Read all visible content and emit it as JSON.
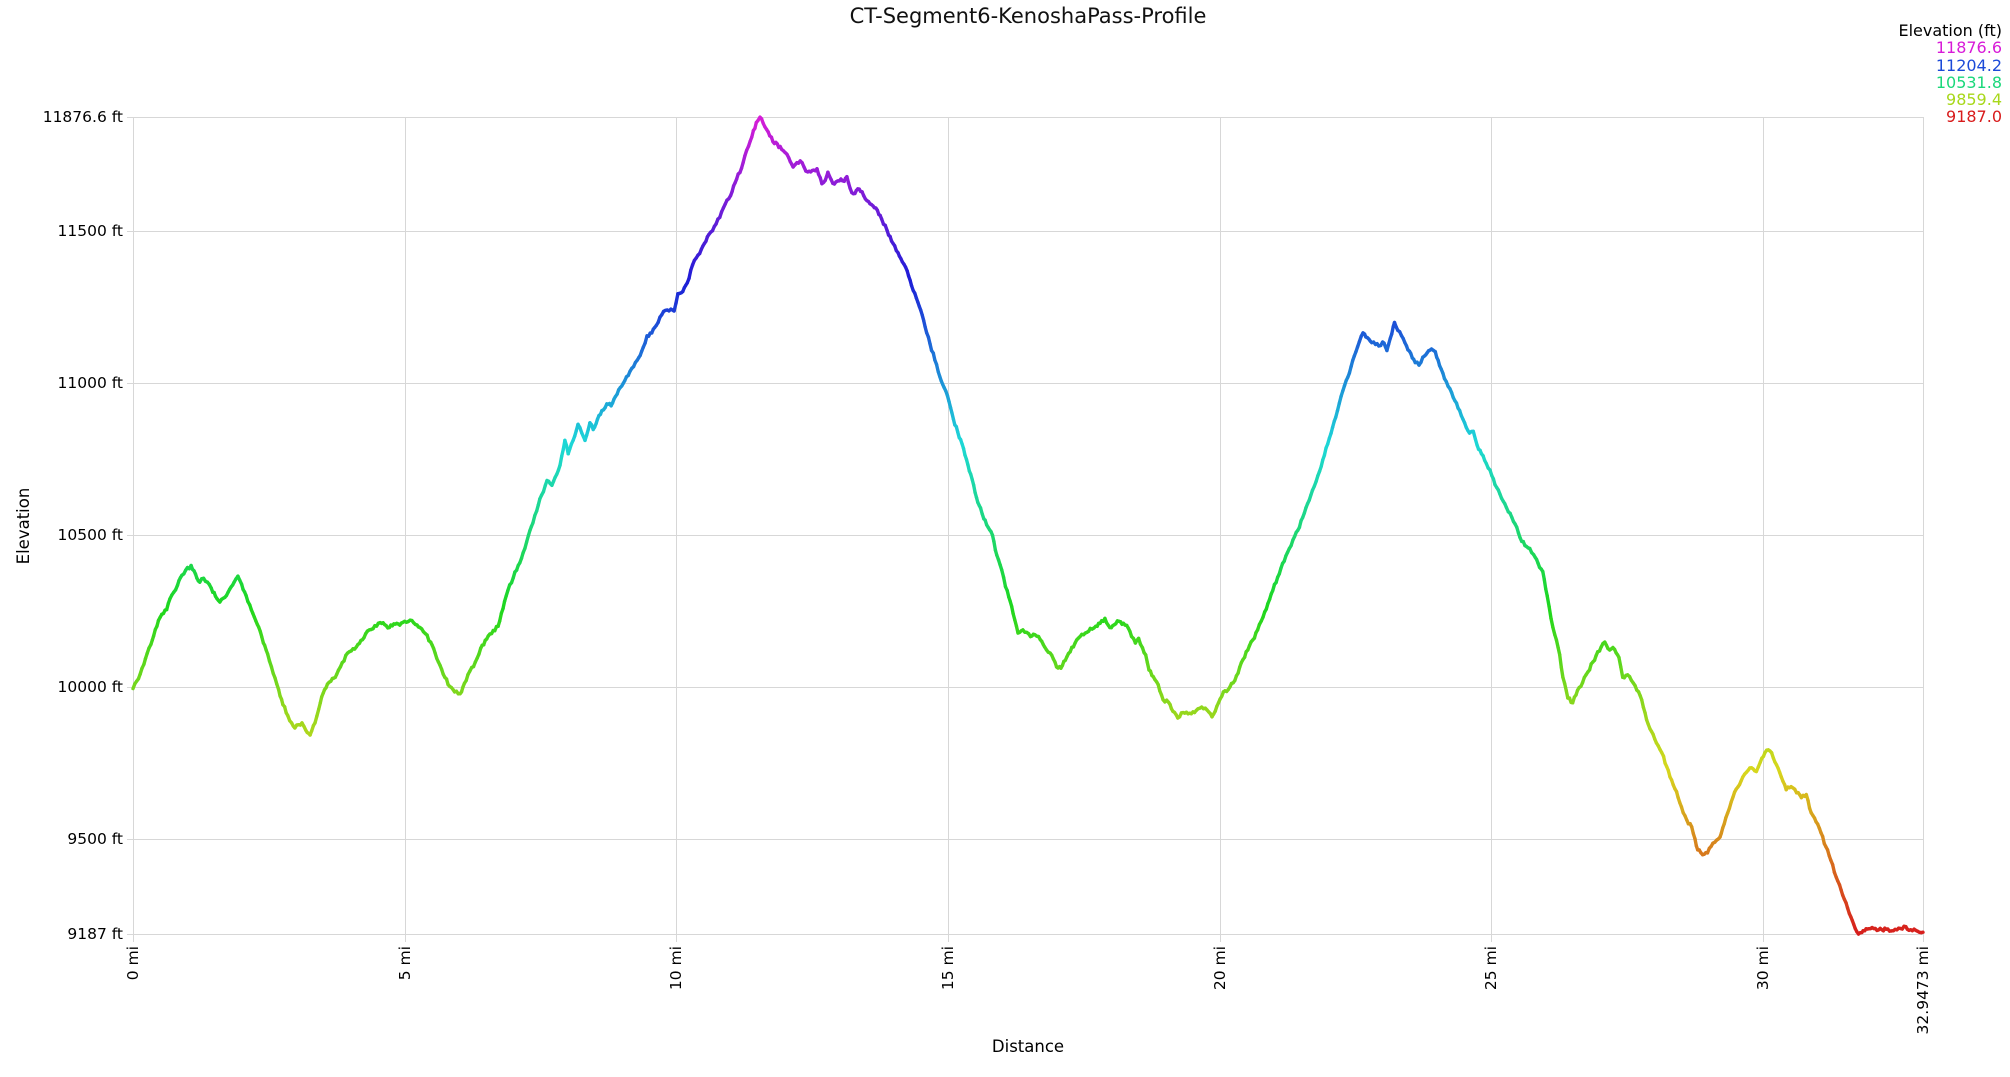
{
  "title": "CT-Segment6-KenoshaPass-Profile",
  "legend": {
    "title": "Elevation (ft)",
    "position": "top-right",
    "entries": [
      {
        "label": "11876.6",
        "color": "#d81bd8"
      },
      {
        "label": "11204.2",
        "color": "#1b4ad8"
      },
      {
        "label": "10531.8",
        "color": "#1bd87b"
      },
      {
        "label": "9859.4",
        "color": "#a8d81b"
      },
      {
        "label": "9187.0",
        "color": "#d81b1b"
      }
    ]
  },
  "colors": {
    "grid": "#d7d7d7",
    "text": "#000000",
    "background": "#ffffff"
  },
  "chart_data": {
    "type": "line",
    "title": "CT-Segment6-KenoshaPass-Profile",
    "xlabel": "Distance",
    "ylabel": "Elevation",
    "x_unit": "mi",
    "y_unit": "ft",
    "xlim": [
      0,
      32.9473
    ],
    "ylim": [
      9187.0,
      11876.6
    ],
    "grid": true,
    "color_mapping": "line colored by elevation: red=9187 ft through orange, yellow-green, green, cyan, blue to magenta=11876.6 ft",
    "x_ticks": [
      {
        "value": 0,
        "label": "0 mi"
      },
      {
        "value": 5,
        "label": "5 mi"
      },
      {
        "value": 10,
        "label": "10 mi"
      },
      {
        "value": 15,
        "label": "15 mi"
      },
      {
        "value": 20,
        "label": "20 mi"
      },
      {
        "value": 25,
        "label": "25 mi"
      },
      {
        "value": 30,
        "label": "30 mi"
      },
      {
        "value": 32.9473,
        "label": "32.9473 mi"
      }
    ],
    "y_ticks": [
      {
        "value": 9187,
        "label": "9187 ft"
      },
      {
        "value": 9500,
        "label": "9500 ft"
      },
      {
        "value": 10000,
        "label": "10000 ft"
      },
      {
        "value": 10500,
        "label": "10500 ft"
      },
      {
        "value": 11000,
        "label": "11000 ft"
      },
      {
        "value": 11500,
        "label": "11500 ft"
      },
      {
        "value": 11876.6,
        "label": "11876.6 ft"
      }
    ],
    "profile": [
      [
        0,
        9995
      ],
      [
        0.07,
        10020
      ],
      [
        0.13,
        10042
      ],
      [
        0.2,
        10075
      ],
      [
        0.26,
        10110
      ],
      [
        0.33,
        10140
      ],
      [
        0.38,
        10168
      ],
      [
        0.44,
        10200
      ],
      [
        0.5,
        10230
      ],
      [
        0.56,
        10242
      ],
      [
        0.62,
        10255
      ],
      [
        0.68,
        10290
      ],
      [
        0.75,
        10312
      ],
      [
        0.82,
        10335
      ],
      [
        0.9,
        10368
      ],
      [
        0.97,
        10385
      ],
      [
        1.07,
        10400
      ],
      [
        1.15,
        10372
      ],
      [
        1.23,
        10345
      ],
      [
        1.3,
        10358
      ],
      [
        1.37,
        10345
      ],
      [
        1.44,
        10326
      ],
      [
        1.52,
        10298
      ],
      [
        1.6,
        10280
      ],
      [
        1.69,
        10295
      ],
      [
        1.78,
        10322
      ],
      [
        1.86,
        10345
      ],
      [
        1.93,
        10365
      ],
      [
        2.0,
        10338
      ],
      [
        2.08,
        10302
      ],
      [
        2.15,
        10270
      ],
      [
        2.26,
        10218
      ],
      [
        2.37,
        10165
      ],
      [
        2.48,
        10108
      ],
      [
        2.58,
        10045
      ],
      [
        2.68,
        9992
      ],
      [
        2.76,
        9942
      ],
      [
        2.85,
        9906
      ],
      [
        2.92,
        9882
      ],
      [
        2.98,
        9865
      ],
      [
        3.05,
        9876
      ],
      [
        3.11,
        9882
      ],
      [
        3.18,
        9858
      ],
      [
        3.26,
        9842
      ],
      [
        3.35,
        9882
      ],
      [
        3.42,
        9928
      ],
      [
        3.5,
        9980
      ],
      [
        3.58,
        10010
      ],
      [
        3.67,
        10028
      ],
      [
        3.75,
        10042
      ],
      [
        3.85,
        10080
      ],
      [
        3.95,
        10112
      ],
      [
        4.05,
        10126
      ],
      [
        4.14,
        10140
      ],
      [
        4.25,
        10162
      ],
      [
        4.35,
        10188
      ],
      [
        4.45,
        10202
      ],
      [
        4.55,
        10212
      ],
      [
        4.63,
        10206
      ],
      [
        4.72,
        10196
      ],
      [
        4.8,
        10208
      ],
      [
        4.91,
        10204
      ],
      [
        5.0,
        10216
      ],
      [
        5.1,
        10220
      ],
      [
        5.2,
        10206
      ],
      [
        5.28,
        10196
      ],
      [
        5.38,
        10176
      ],
      [
        5.48,
        10148
      ],
      [
        5.56,
        10112
      ],
      [
        5.65,
        10072
      ],
      [
        5.74,
        10032
      ],
      [
        5.83,
        10002
      ],
      [
        5.92,
        9984
      ],
      [
        6.02,
        9978
      ],
      [
        6.1,
        10012
      ],
      [
        6.2,
        10052
      ],
      [
        6.3,
        10082
      ],
      [
        6.4,
        10128
      ],
      [
        6.51,
        10158
      ],
      [
        6.6,
        10176
      ],
      [
        6.72,
        10200
      ],
      [
        6.81,
        10258
      ],
      [
        6.9,
        10318
      ],
      [
        7.0,
        10360
      ],
      [
        7.09,
        10400
      ],
      [
        7.18,
        10442
      ],
      [
        7.28,
        10500
      ],
      [
        7.36,
        10540
      ],
      [
        7.43,
        10580
      ],
      [
        7.52,
        10632
      ],
      [
        7.62,
        10680
      ],
      [
        7.71,
        10664
      ],
      [
        7.77,
        10690
      ],
      [
        7.86,
        10730
      ],
      [
        7.95,
        10812
      ],
      [
        8.01,
        10768
      ],
      [
        8.1,
        10812
      ],
      [
        8.19,
        10865
      ],
      [
        8.26,
        10836
      ],
      [
        8.32,
        10812
      ],
      [
        8.41,
        10870
      ],
      [
        8.47,
        10848
      ],
      [
        8.55,
        10882
      ],
      [
        8.63,
        10910
      ],
      [
        8.72,
        10932
      ],
      [
        8.8,
        10926
      ],
      [
        8.88,
        10956
      ],
      [
        8.97,
        10986
      ],
      [
        9.05,
        11008
      ],
      [
        9.15,
        11040
      ],
      [
        9.28,
        11076
      ],
      [
        9.39,
        11118
      ],
      [
        9.46,
        11156
      ],
      [
        9.55,
        11166
      ],
      [
        9.63,
        11190
      ],
      [
        9.7,
        11218
      ],
      [
        9.8,
        11240
      ],
      [
        9.9,
        11244
      ],
      [
        9.96,
        11238
      ],
      [
        10.03,
        11295
      ],
      [
        10.12,
        11302
      ],
      [
        10.2,
        11330
      ],
      [
        10.3,
        11390
      ],
      [
        10.4,
        11422
      ],
      [
        10.49,
        11452
      ],
      [
        10.6,
        11490
      ],
      [
        10.7,
        11516
      ],
      [
        10.8,
        11546
      ],
      [
        10.9,
        11590
      ],
      [
        11.0,
        11618
      ],
      [
        11.11,
        11672
      ],
      [
        11.23,
        11726
      ],
      [
        11.33,
        11780
      ],
      [
        11.42,
        11832
      ],
      [
        11.5,
        11864
      ],
      [
        11.54,
        11876
      ],
      [
        11.6,
        11856
      ],
      [
        11.69,
        11828
      ],
      [
        11.78,
        11795
      ],
      [
        11.86,
        11788
      ],
      [
        11.94,
        11770
      ],
      [
        12.0,
        11760
      ],
      [
        12.07,
        11742
      ],
      [
        12.15,
        11712
      ],
      [
        12.22,
        11726
      ],
      [
        12.28,
        11732
      ],
      [
        12.35,
        11712
      ],
      [
        12.42,
        11696
      ],
      [
        12.5,
        11700
      ],
      [
        12.59,
        11706
      ],
      [
        12.68,
        11657
      ],
      [
        12.74,
        11668
      ],
      [
        12.79,
        11695
      ],
      [
        12.85,
        11671
      ],
      [
        12.91,
        11656
      ],
      [
        12.97,
        11666
      ],
      [
        13.03,
        11672
      ],
      [
        13.09,
        11665
      ],
      [
        13.14,
        11680
      ],
      [
        13.2,
        11642
      ],
      [
        13.26,
        11624
      ],
      [
        13.34,
        11640
      ],
      [
        13.42,
        11630
      ],
      [
        13.51,
        11601
      ],
      [
        13.62,
        11584
      ],
      [
        13.7,
        11570
      ],
      [
        13.78,
        11540
      ],
      [
        13.88,
        11503
      ],
      [
        13.99,
        11460
      ],
      [
        14.08,
        11430
      ],
      [
        14.16,
        11400
      ],
      [
        14.25,
        11370
      ],
      [
        14.33,
        11322
      ],
      [
        14.42,
        11280
      ],
      [
        14.5,
        11240
      ],
      [
        14.58,
        11186
      ],
      [
        14.67,
        11130
      ],
      [
        14.76,
        11076
      ],
      [
        14.85,
        11022
      ],
      [
        14.93,
        10986
      ],
      [
        15.02,
        10940
      ],
      [
        15.1,
        10882
      ],
      [
        15.18,
        10840
      ],
      [
        15.26,
        10800
      ],
      [
        15.34,
        10750
      ],
      [
        15.42,
        10700
      ],
      [
        15.5,
        10640
      ],
      [
        15.55,
        10608
      ],
      [
        15.6,
        10590
      ],
      [
        15.66,
        10554
      ],
      [
        15.74,
        10526
      ],
      [
        15.82,
        10500
      ],
      [
        15.9,
        10434
      ],
      [
        15.99,
        10386
      ],
      [
        16.06,
        10330
      ],
      [
        16.12,
        10296
      ],
      [
        16.2,
        10242
      ],
      [
        16.29,
        10178
      ],
      [
        16.38,
        10188
      ],
      [
        16.45,
        10180
      ],
      [
        16.52,
        10166
      ],
      [
        16.6,
        10172
      ],
      [
        16.7,
        10156
      ],
      [
        16.78,
        10132
      ],
      [
        16.88,
        10112
      ],
      [
        17.0,
        10066
      ],
      [
        17.08,
        10062
      ],
      [
        17.16,
        10088
      ],
      [
        17.25,
        10116
      ],
      [
        17.34,
        10145
      ],
      [
        17.43,
        10166
      ],
      [
        17.53,
        10178
      ],
      [
        17.62,
        10193
      ],
      [
        17.72,
        10200
      ],
      [
        17.8,
        10210
      ],
      [
        17.89,
        10226
      ],
      [
        17.98,
        10196
      ],
      [
        18.06,
        10205
      ],
      [
        18.15,
        10216
      ],
      [
        18.23,
        10210
      ],
      [
        18.29,
        10203
      ],
      [
        18.38,
        10166
      ],
      [
        18.45,
        10145
      ],
      [
        18.51,
        10160
      ],
      [
        18.58,
        10130
      ],
      [
        18.64,
        10106
      ],
      [
        18.7,
        10056
      ],
      [
        18.78,
        10034
      ],
      [
        18.87,
        10008
      ],
      [
        18.96,
        9958
      ],
      [
        19.06,
        9950
      ],
      [
        19.14,
        9920
      ],
      [
        19.23,
        9898
      ],
      [
        19.33,
        9916
      ],
      [
        19.42,
        9912
      ],
      [
        19.51,
        9918
      ],
      [
        19.6,
        9928
      ],
      [
        19.67,
        9934
      ],
      [
        19.77,
        9924
      ],
      [
        19.86,
        9902
      ],
      [
        19.92,
        9920
      ],
      [
        19.98,
        9948
      ],
      [
        20.07,
        9984
      ],
      [
        20.16,
        9992
      ],
      [
        20.25,
        10014
      ],
      [
        20.34,
        10046
      ],
      [
        20.43,
        10090
      ],
      [
        20.52,
        10122
      ],
      [
        20.61,
        10155
      ],
      [
        20.7,
        10188
      ],
      [
        20.8,
        10230
      ],
      [
        20.89,
        10275
      ],
      [
        20.98,
        10318
      ],
      [
        21.07,
        10362
      ],
      [
        21.16,
        10407
      ],
      [
        21.25,
        10443
      ],
      [
        21.35,
        10484
      ],
      [
        21.44,
        10516
      ],
      [
        21.53,
        10558
      ],
      [
        21.62,
        10604
      ],
      [
        21.71,
        10648
      ],
      [
        21.81,
        10696
      ],
      [
        21.9,
        10748
      ],
      [
        21.99,
        10800
      ],
      [
        22.08,
        10855
      ],
      [
        22.17,
        10910
      ],
      [
        22.27,
        10976
      ],
      [
        22.36,
        11020
      ],
      [
        22.45,
        11075
      ],
      [
        22.54,
        11120
      ],
      [
        22.64,
        11166
      ],
      [
        22.72,
        11150
      ],
      [
        22.8,
        11134
      ],
      [
        22.87,
        11128
      ],
      [
        22.93,
        11123
      ],
      [
        23.0,
        11136
      ],
      [
        23.08,
        11108
      ],
      [
        23.17,
        11163
      ],
      [
        23.22,
        11200
      ],
      [
        23.28,
        11174
      ],
      [
        23.35,
        11156
      ],
      [
        23.44,
        11123
      ],
      [
        23.52,
        11098
      ],
      [
        23.6,
        11068
      ],
      [
        23.67,
        11060
      ],
      [
        23.74,
        11086
      ],
      [
        23.82,
        11100
      ],
      [
        23.9,
        11113
      ],
      [
        23.97,
        11104
      ],
      [
        24.05,
        11058
      ],
      [
        24.14,
        11015
      ],
      [
        24.24,
        10982
      ],
      [
        24.33,
        10943
      ],
      [
        24.42,
        10910
      ],
      [
        24.51,
        10870
      ],
      [
        24.6,
        10836
      ],
      [
        24.67,
        10842
      ],
      [
        24.74,
        10796
      ],
      [
        24.82,
        10768
      ],
      [
        24.91,
        10736
      ],
      [
        25.01,
        10696
      ],
      [
        25.1,
        10657
      ],
      [
        25.19,
        10621
      ],
      [
        25.28,
        10591
      ],
      [
        25.38,
        10558
      ],
      [
        25.47,
        10526
      ],
      [
        25.53,
        10492
      ],
      [
        25.62,
        10466
      ],
      [
        25.71,
        10456
      ],
      [
        25.78,
        10436
      ],
      [
        25.86,
        10408
      ],
      [
        25.95,
        10380
      ],
      [
        26.03,
        10300
      ],
      [
        26.1,
        10226
      ],
      [
        26.17,
        10172
      ],
      [
        26.26,
        10106
      ],
      [
        26.32,
        10032
      ],
      [
        26.41,
        9964
      ],
      [
        26.5,
        9948
      ],
      [
        26.59,
        9990
      ],
      [
        26.68,
        10014
      ],
      [
        26.78,
        10050
      ],
      [
        26.87,
        10082
      ],
      [
        26.96,
        10116
      ],
      [
        27.09,
        10148
      ],
      [
        27.18,
        10122
      ],
      [
        27.24,
        10130
      ],
      [
        27.3,
        10112
      ],
      [
        27.35,
        10098
      ],
      [
        27.42,
        10032
      ],
      [
        27.51,
        10040
      ],
      [
        27.58,
        10022
      ],
      [
        27.68,
        9990
      ],
      [
        27.77,
        9958
      ],
      [
        27.86,
        9892
      ],
      [
        27.95,
        9854
      ],
      [
        28.04,
        9816
      ],
      [
        28.14,
        9784
      ],
      [
        28.23,
        9738
      ],
      [
        28.32,
        9694
      ],
      [
        28.41,
        9656
      ],
      [
        28.5,
        9606
      ],
      [
        28.6,
        9562
      ],
      [
        28.69,
        9540
      ],
      [
        28.75,
        9500
      ],
      [
        28.8,
        9464
      ],
      [
        28.89,
        9448
      ],
      [
        28.98,
        9454
      ],
      [
        29.08,
        9486
      ],
      [
        29.15,
        9496
      ],
      [
        29.21,
        9506
      ],
      [
        29.26,
        9536
      ],
      [
        29.35,
        9585
      ],
      [
        29.45,
        9638
      ],
      [
        29.54,
        9671
      ],
      [
        29.63,
        9704
      ],
      [
        29.7,
        9720
      ],
      [
        29.79,
        9734
      ],
      [
        29.88,
        9722
      ],
      [
        29.95,
        9752
      ],
      [
        30.07,
        9792
      ],
      [
        30.16,
        9784
      ],
      [
        30.25,
        9744
      ],
      [
        30.34,
        9704
      ],
      [
        30.43,
        9662
      ],
      [
        30.52,
        9672
      ],
      [
        30.62,
        9652
      ],
      [
        30.71,
        9636
      ],
      [
        30.8,
        9646
      ],
      [
        30.89,
        9586
      ],
      [
        30.98,
        9556
      ],
      [
        31.07,
        9520
      ],
      [
        31.16,
        9474
      ],
      [
        31.25,
        9430
      ],
      [
        31.35,
        9374
      ],
      [
        31.44,
        9332
      ],
      [
        31.53,
        9290
      ],
      [
        31.62,
        9243
      ],
      [
        31.7,
        9205
      ],
      [
        31.76,
        9187
      ],
      [
        31.82,
        9192
      ],
      [
        31.9,
        9204
      ],
      [
        32.01,
        9208
      ],
      [
        32.1,
        9199
      ],
      [
        32.19,
        9201
      ],
      [
        32.3,
        9203
      ],
      [
        32.4,
        9198
      ],
      [
        32.5,
        9206
      ],
      [
        32.63,
        9211
      ],
      [
        32.75,
        9198
      ],
      [
        32.85,
        9196
      ],
      [
        32.9473,
        9193
      ]
    ]
  }
}
